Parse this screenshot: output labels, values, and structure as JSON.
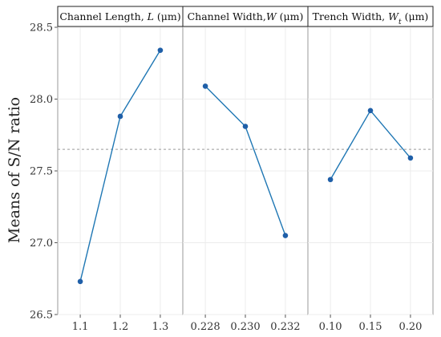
{
  "chart_data": {
    "type": "line",
    "ylabel": "Means of S/N ratio",
    "ylim": [
      26.5,
      28.5
    ],
    "yticks": [
      "26.5",
      "27.0",
      "27.5",
      "28.0",
      "28.5"
    ],
    "reference_line": 27.65,
    "grid": true,
    "line_color": "#1f77b4",
    "marker_color": "#1f5fa8",
    "panels": [
      {
        "title": "Channel Length, L (μm)",
        "title_parts": [
          "Channel Length, ",
          "L",
          " (μm)"
        ],
        "categories": [
          "1.1",
          "1.2",
          "1.3"
        ],
        "values": [
          26.73,
          27.88,
          28.34
        ]
      },
      {
        "title": "Channel Width,W (μm)",
        "title_parts": [
          "Channel Width,",
          "W",
          " (μm)"
        ],
        "categories": [
          "0.228",
          "0.230",
          "0.232"
        ],
        "values": [
          28.09,
          27.81,
          27.05
        ]
      },
      {
        "title": "Trench Width, Wt (μm)",
        "title_parts": [
          "Trench Width, ",
          "W",
          "t",
          " (μm)"
        ],
        "categories": [
          "0.10",
          "0.15",
          "0.20"
        ],
        "values": [
          27.44,
          27.92,
          27.59
        ]
      }
    ]
  }
}
